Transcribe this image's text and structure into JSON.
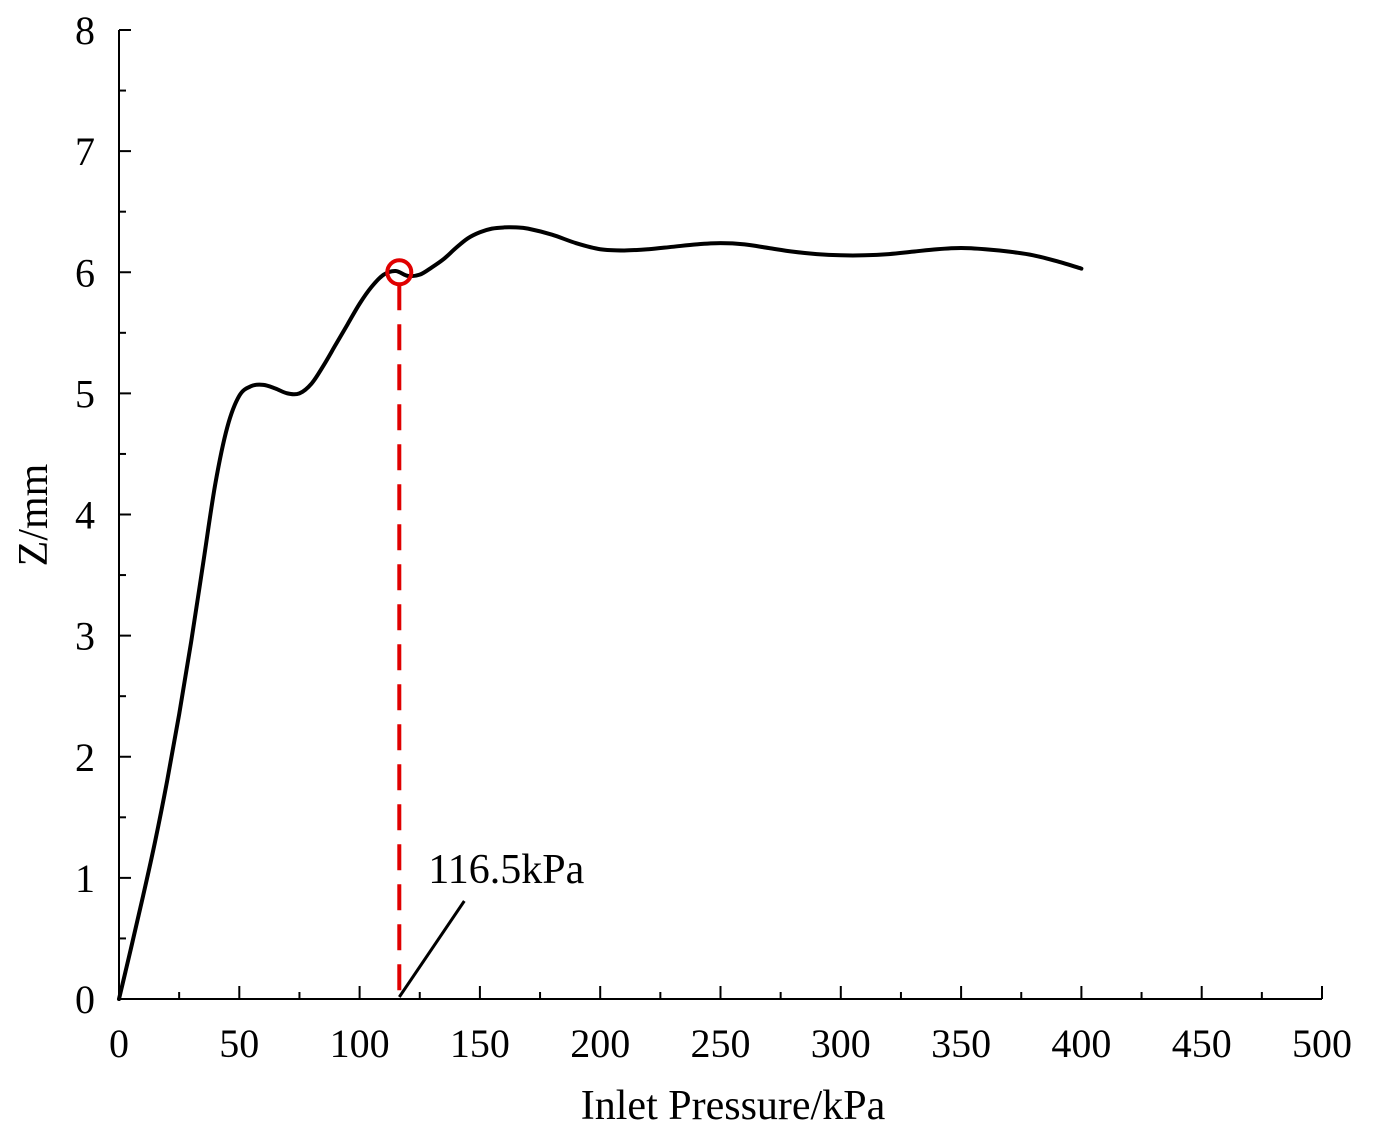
{
  "chart_data": {
    "type": "line",
    "title": "",
    "xlabel": "Inlet Pressure/kPa",
    "ylabel": "Z/mm",
    "xlim": [
      0,
      500
    ],
    "ylim": [
      0,
      8
    ],
    "x_ticks": [
      "0",
      "50",
      "100",
      "150",
      "200",
      "250",
      "300",
      "350",
      "400",
      "450",
      "500"
    ],
    "y_ticks": [
      "0",
      "1",
      "2",
      "3",
      "4",
      "5",
      "6",
      "7",
      "8"
    ],
    "grid": false,
    "series": [
      {
        "name": "Z",
        "color": "#000000",
        "x": [
          0,
          5,
          10,
          15,
          20,
          25,
          30,
          35,
          40,
          45,
          50,
          55,
          60,
          65,
          70,
          75,
          80,
          85,
          90,
          95,
          100,
          105,
          110,
          115,
          120,
          125,
          130,
          135,
          140,
          145,
          150,
          155,
          160,
          165,
          170,
          180,
          190,
          200,
          210,
          220,
          230,
          240,
          250,
          260,
          270,
          280,
          290,
          300,
          310,
          320,
          330,
          340,
          350,
          360,
          370,
          380,
          390,
          400
        ],
        "y": [
          0,
          0.42,
          0.85,
          1.3,
          1.8,
          2.35,
          2.95,
          3.6,
          4.25,
          4.72,
          4.98,
          5.06,
          5.07,
          5.04,
          5.0,
          5.0,
          5.08,
          5.23,
          5.4,
          5.57,
          5.74,
          5.88,
          5.98,
          6.01,
          5.97,
          5.98,
          6.04,
          6.11,
          6.2,
          6.28,
          6.33,
          6.36,
          6.37,
          6.37,
          6.36,
          6.31,
          6.24,
          6.19,
          6.18,
          6.19,
          6.21,
          6.23,
          6.24,
          6.23,
          6.2,
          6.17,
          6.15,
          6.14,
          6.14,
          6.15,
          6.17,
          6.19,
          6.2,
          6.19,
          6.17,
          6.14,
          6.09,
          6.03
        ]
      }
    ],
    "annotation": {
      "label": "116.5kPa",
      "x": 116.5,
      "y": 6.0,
      "marker_color": "#e00000",
      "dash_color": "#e00000"
    }
  }
}
